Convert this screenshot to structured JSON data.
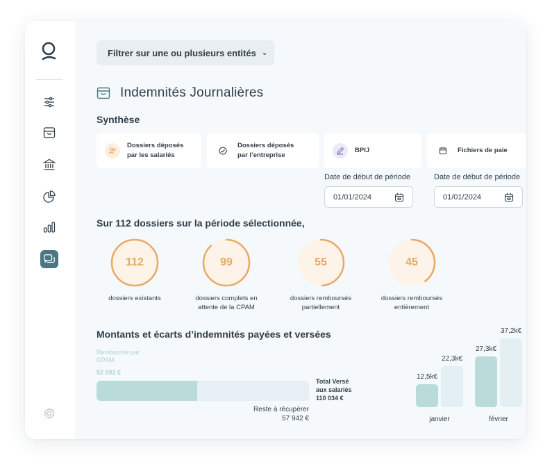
{
  "sidebar": {
    "items": [
      {
        "name": "sliders-icon"
      },
      {
        "name": "inbox-icon"
      },
      {
        "name": "bank-icon"
      },
      {
        "name": "pie-chart-icon"
      },
      {
        "name": "bar-chart-icon"
      },
      {
        "name": "chat-icon",
        "active": true
      }
    ],
    "settings_icon": "gear-icon"
  },
  "filter": {
    "label": "Filtrer sur une ou plusieurs entités"
  },
  "page": {
    "title": "Indemnités Journalières",
    "title_icon": "inbox-icon"
  },
  "synthese": {
    "label": "Synthèse",
    "cards": [
      {
        "line1": "Dossiers déposés",
        "line2": "par les salariés",
        "icon": "users-icon"
      },
      {
        "line1": "Dossiers déposés",
        "line2": "par l’entreprise",
        "icon": "check-circle-icon"
      },
      {
        "line1": "BPIJ",
        "line2": "",
        "icon": "pen-icon"
      },
      {
        "line1": "Fichiers de paie",
        "line2": "",
        "icon": "calendar-icon"
      }
    ]
  },
  "dates": [
    {
      "label": "Date de début de période",
      "value": "01/01/2024"
    },
    {
      "label": "Date de début de période",
      "value": "01/01/2024"
    }
  ],
  "period": {
    "title": "Sur 112 dossiers sur la période sélectionnée,",
    "total": 112,
    "rings": [
      {
        "value": "112",
        "fraction": 1.0,
        "line1": "dossiers existants",
        "line2": ""
      },
      {
        "value": "99",
        "fraction": 0.88,
        "line1": "dossiers complets en",
        "line2": "attente de la CPAM"
      },
      {
        "value": "55",
        "fraction": 0.49,
        "line1": "dossiers remboursés",
        "line2": "partiellement"
      },
      {
        "value": "45",
        "fraction": 0.4,
        "line1": "dossiers remboursés",
        "line2": "entièrement"
      }
    ]
  },
  "montants": {
    "title": "Montants et écarts d’indemnités  payées et versées",
    "rembourse_label1": "Remboursé par",
    "rembourse_label2": "CPAM",
    "rembourse_value": "52 092 €",
    "rembourse_fraction": 0.4734,
    "total_label1": "Total Versé",
    "total_label2": "aux salariés",
    "total_value": "110 034 €",
    "reste_label": "Reste à récupérer",
    "reste_value": "57 942 €"
  },
  "chart_data": {
    "type": "bar",
    "categories": [
      "janvier",
      "février"
    ],
    "series": [
      {
        "values": [
          12.5,
          27.3
        ],
        "labels": [
          "12,5k€",
          "27,3k€"
        ],
        "color": "#b9dbda"
      },
      {
        "values": [
          22.3,
          37.2
        ],
        "labels": [
          "22,3k€",
          "37,2k€"
        ],
        "color": "#e3eff3"
      }
    ],
    "ylim": [
      0,
      37.2
    ]
  },
  "colors": {
    "accent": "#e8a962",
    "active_nav": "#4c7683",
    "teal": "#b9dbda"
  }
}
